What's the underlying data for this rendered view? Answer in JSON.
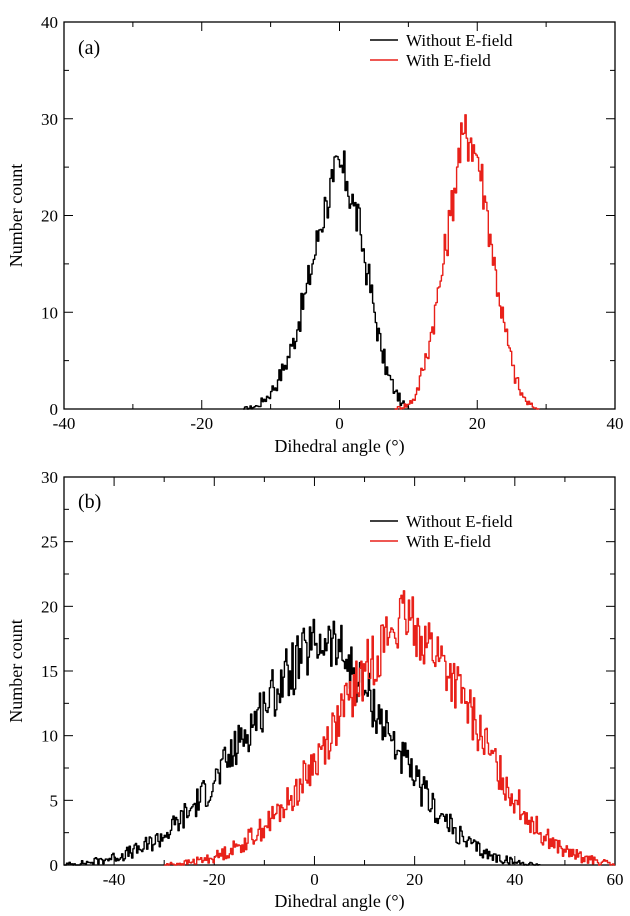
{
  "chart_data": [
    {
      "type": "line",
      "panel_label": "(a)",
      "xlabel": "Dihedral angle (°)",
      "ylabel": "Number count",
      "xlim": [
        -40,
        40
      ],
      "ylim": [
        0,
        40
      ],
      "xticks": [
        -40,
        -20,
        0,
        20,
        40
      ],
      "yticks": [
        0,
        10,
        20,
        30,
        40
      ],
      "grid": false,
      "legend_position": "top-right",
      "series": [
        {
          "name": "Without E-field",
          "color": "#000000",
          "x": [
            -14,
            -12,
            -11,
            -10,
            -9,
            -8,
            -7,
            -6,
            -5,
            -4,
            -3,
            -2,
            -1,
            0,
            1,
            2,
            3,
            4,
            5,
            6,
            7,
            8,
            9,
            10
          ],
          "y": [
            0,
            0.3,
            1,
            1.8,
            3,
            4.5,
            6.5,
            9,
            12,
            15,
            18.5,
            21.5,
            23.5,
            25,
            23.5,
            21,
            18,
            14,
            10,
            6,
            3.5,
            1.8,
            0.6,
            0
          ]
        },
        {
          "name": "With E-field",
          "color": "#e8211a",
          "x": [
            8,
            10,
            11,
            12,
            13,
            14,
            15,
            16,
            17,
            18,
            19,
            20,
            21,
            22,
            23,
            24,
            25,
            26,
            27,
            28,
            29
          ],
          "y": [
            0,
            0.5,
            1.5,
            4,
            7,
            11,
            15,
            20,
            25,
            28.5,
            28,
            26,
            22,
            17,
            12,
            8,
            4.5,
            2,
            0.8,
            0.2,
            0
          ]
        }
      ]
    },
    {
      "type": "line",
      "panel_label": "(b)",
      "xlabel": "Dihedral angle (°)",
      "ylabel": "Number count",
      "xlim": [
        -50,
        60
      ],
      "ylim": [
        0,
        30
      ],
      "xticks": [
        -40,
        -20,
        0,
        20,
        40,
        60
      ],
      "yticks": [
        0,
        5,
        10,
        15,
        20,
        25,
        30
      ],
      "grid": false,
      "legend_position": "top-right",
      "series": [
        {
          "name": "Without E-field",
          "color": "#000000",
          "x": [
            -50,
            -45,
            -40,
            -35,
            -30,
            -25,
            -20,
            -15,
            -10,
            -5,
            0,
            2,
            5,
            10,
            15,
            20,
            25,
            30,
            35,
            40,
            45
          ],
          "y": [
            0,
            0.2,
            0.6,
            1.2,
            2.3,
            4.2,
            6.5,
            9.5,
            12.5,
            15,
            17,
            17.5,
            16.5,
            13.5,
            10,
            6.5,
            3.8,
            1.8,
            0.7,
            0.2,
            0
          ]
        },
        {
          "name": "With E-field",
          "color": "#e8211a",
          "x": [
            -30,
            -25,
            -20,
            -15,
            -10,
            -5,
            0,
            5,
            10,
            15,
            18,
            20,
            25,
            30,
            35,
            40,
            45,
            50,
            55,
            60
          ],
          "y": [
            0,
            0.2,
            0.6,
            1.5,
            3,
            5,
            8,
            11.5,
            15,
            18,
            19,
            18.5,
            16,
            12.5,
            8.5,
            5,
            2.5,
            1,
            0.4,
            0
          ]
        }
      ]
    }
  ]
}
